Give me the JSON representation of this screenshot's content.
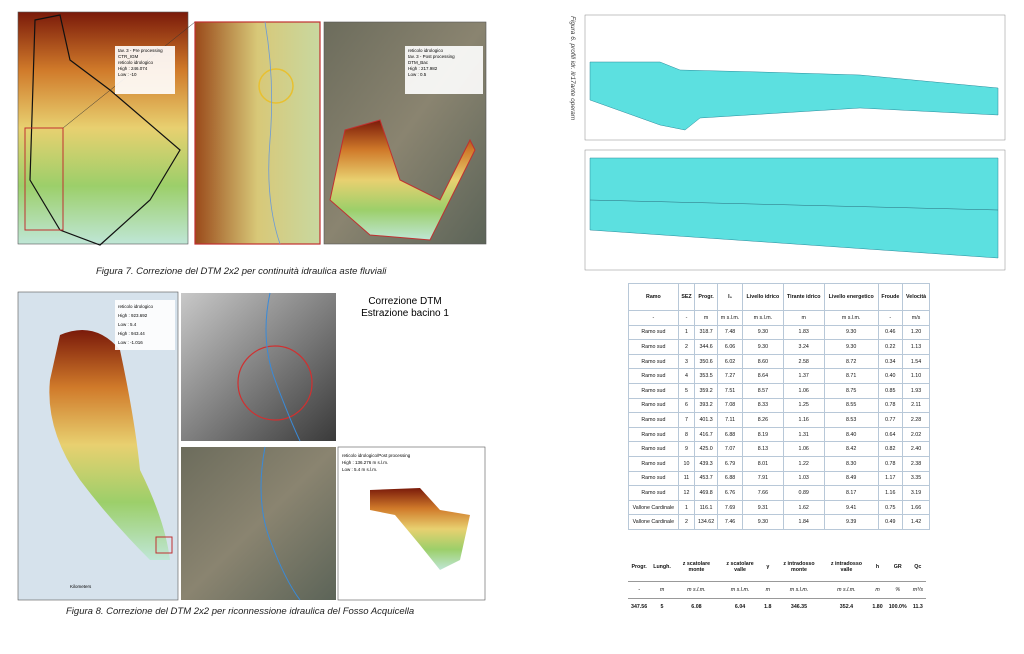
{
  "figure7": {
    "caption": "Figura 7. Correzione del DTM 2x2 per continuità idraulica aste fluviali",
    "legend_left": [
      "tav. 3 - Pre processing",
      "CTR_IGM",
      "reticolo idrologico",
      "High : 246.074",
      "Low : -10"
    ],
    "legend_right": [
      "reticolo idrologico",
      "tav. 3 - Post processing",
      "DTM_Bac",
      "High : 217.982",
      "Low : 0.5"
    ]
  },
  "figure8": {
    "caption": "Figura 8. Correzione del DTM 2x2 per riconnessione idraulica del Fosso Acquicella",
    "title_lines": [
      "Correzione DTM",
      "Estrazione bacino 1"
    ],
    "legend_left": [
      "reticolo idrologico",
      "High : 923.692",
      "Low : 5.4",
      "High : 943.44",
      "Low : -1.016"
    ],
    "legend_right": [
      "reticolo idrologico/Post processing",
      "High : 136.276 m s.l.m.",
      "Low : 5.4 m s.l.m."
    ],
    "scale_unit": "Kilometers"
  },
  "figure6": {
    "caption": "Figura 6. profili idr. ilr17ante operam"
  },
  "table1": {
    "header": [
      "Ramo",
      "SEZ",
      "Progr.",
      "I₀",
      "Livello idrico",
      "Tirante idrico",
      "Livello energetico",
      "Froude",
      "Velocità"
    ],
    "units": [
      "-",
      "-",
      "m",
      "m s.l.m.",
      "m s.l.m.",
      "m",
      "m s.l.m.",
      "-",
      "m/s"
    ],
    "rows": [
      [
        "Ramo sud",
        "1",
        "318.7",
        "7.48",
        "9.30",
        "1.83",
        "9.30",
        "0.46",
        "1.20"
      ],
      [
        "Ramo sud",
        "2",
        "344.6",
        "6.06",
        "9.30",
        "3.24",
        "9.30",
        "0.22",
        "1.13"
      ],
      [
        "Ramo sud",
        "3",
        "350.6",
        "6.02",
        "8.60",
        "2.58",
        "8.72",
        "0.34",
        "1.54"
      ],
      [
        "Ramo sud",
        "4",
        "353.5",
        "7.27",
        "8.64",
        "1.37",
        "8.71",
        "0.40",
        "1.10"
      ],
      [
        "Ramo sud",
        "5",
        "359.2",
        "7.51",
        "8.57",
        "1.06",
        "8.75",
        "0.85",
        "1.93"
      ],
      [
        "Ramo sud",
        "6",
        "393.2",
        "7.08",
        "8.33",
        "1.25",
        "8.55",
        "0.78",
        "2.11"
      ],
      [
        "Ramo sud",
        "7",
        "401.3",
        "7.11",
        "8.26",
        "1.16",
        "8.53",
        "0.77",
        "2.28"
      ],
      [
        "Ramo sud",
        "8",
        "416.7",
        "6.88",
        "8.19",
        "1.31",
        "8.40",
        "0.64",
        "2.02"
      ],
      [
        "Ramo sud",
        "9",
        "425.0",
        "7.07",
        "8.13",
        "1.06",
        "8.42",
        "0.82",
        "2.40"
      ],
      [
        "Ramo sud",
        "10",
        "439.3",
        "6.79",
        "8.01",
        "1.22",
        "8.30",
        "0.78",
        "2.38"
      ],
      [
        "Ramo sud",
        "11",
        "453.7",
        "6.88",
        "7.91",
        "1.03",
        "8.49",
        "1.17",
        "3.35"
      ],
      [
        "Ramo sud",
        "12",
        "469.8",
        "6.76",
        "7.66",
        "0.89",
        "8.17",
        "1.16",
        "3.19"
      ],
      [
        "Vallone Cardinale",
        "1",
        "116.1",
        "7.69",
        "9.31",
        "1.62",
        "9.41",
        "0.75",
        "1.66"
      ],
      [
        "Vallone Cardinale",
        "2",
        "134.62",
        "7.46",
        "9.30",
        "1.84",
        "9.39",
        "0.49",
        "1.42"
      ]
    ]
  },
  "table2": {
    "header": [
      "Progr.",
      "Lungh.",
      "z scatolare monte",
      "z scatolare valle",
      "γ",
      "z intradosso monte",
      "z intradosso valle",
      "h",
      "GR",
      "Qc"
    ],
    "units": [
      "-",
      "m",
      "m s.l.m.",
      "m s.l.m.",
      "m",
      "m s.l.m.",
      "m s.l.m.",
      "m",
      "%",
      "m³/s"
    ],
    "rows": [
      [
        "347.56",
        "5",
        "6.08",
        "6.04",
        "1.8",
        "346.35",
        "352.4",
        "1.80",
        "100.0%",
        "11.3"
      ]
    ]
  }
}
